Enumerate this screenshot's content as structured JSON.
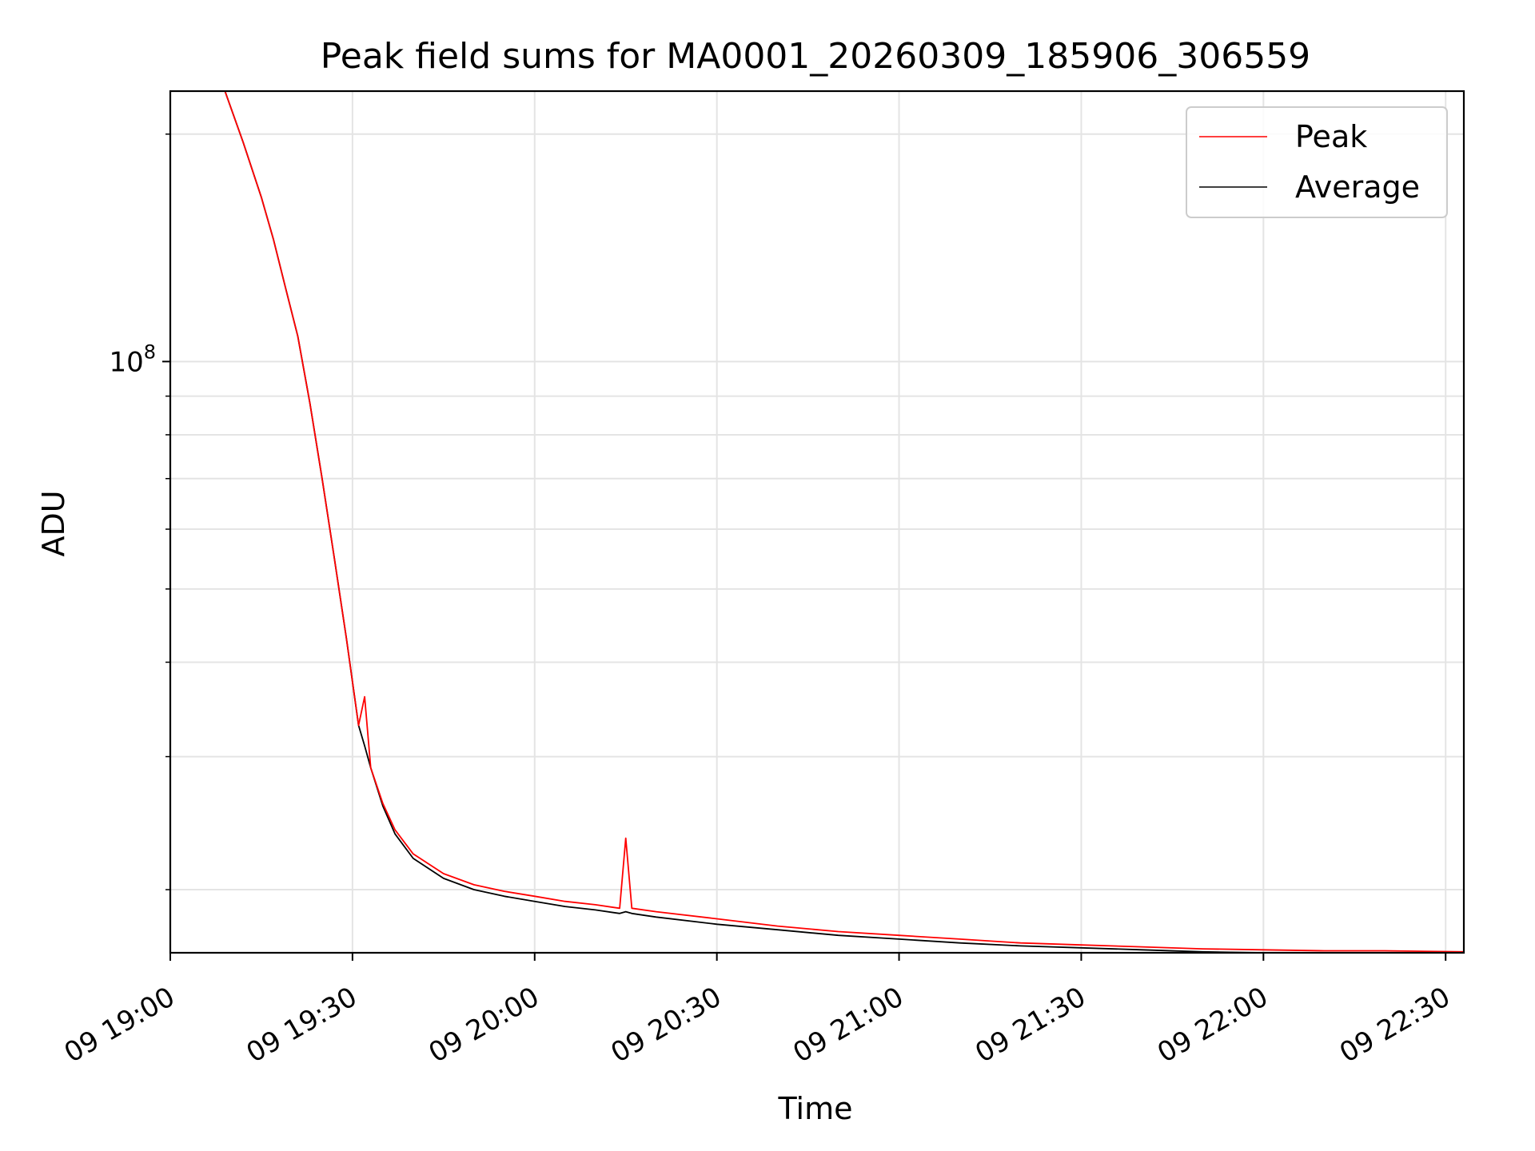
{
  "chart_data": {
    "type": "line",
    "title": "Peak field sums for MA0001_20260309_185906_306559",
    "xlabel": "Time",
    "ylabel": "ADU",
    "x_scale": "time",
    "y_scale": "log",
    "xlim": [
      "2026-03-09 19:00",
      "2026-03-09 22:33"
    ],
    "ylim": [
      16500000,
      228000000
    ],
    "x_ticks": [
      "09 19:00",
      "09 19:30",
      "09 20:00",
      "09 20:30",
      "09 21:00",
      "09 21:30",
      "09 22:00",
      "09 22:30"
    ],
    "y_ticks": [
      {
        "label_base": "10",
        "label_exp": "8",
        "value": 100000000
      }
    ],
    "y_minor_ticks": [
      20000000,
      30000000,
      40000000,
      50000000,
      60000000,
      70000000,
      80000000,
      90000000,
      200000000
    ],
    "grid": true,
    "legend_position": "top-right",
    "series": [
      {
        "name": "Peak",
        "color": "#ff0000",
        "points": [
          [
            "2026-03-09 19:09",
            228000000
          ],
          [
            "2026-03-09 19:12",
            195000000
          ],
          [
            "2026-03-09 19:15",
            165000000
          ],
          [
            "2026-03-09 19:17",
            145000000
          ],
          [
            "2026-03-09 19:19",
            125000000
          ],
          [
            "2026-03-09 19:21",
            108000000
          ],
          [
            "2026-03-09 19:23",
            88000000
          ],
          [
            "2026-03-09 19:25",
            70000000
          ],
          [
            "2026-03-09 19:27",
            55000000
          ],
          [
            "2026-03-09 19:29",
            43000000
          ],
          [
            "2026-03-09 19:31",
            33000000
          ],
          [
            "2026-03-09 19:32",
            36000000
          ],
          [
            "2026-03-09 19:33",
            29000000
          ],
          [
            "2026-03-09 19:35",
            26000000
          ],
          [
            "2026-03-09 19:37",
            24000000
          ],
          [
            "2026-03-09 19:40",
            22300000
          ],
          [
            "2026-03-09 19:45",
            21000000
          ],
          [
            "2026-03-09 19:50",
            20300000
          ],
          [
            "2026-03-09 19:55",
            19900000
          ],
          [
            "2026-03-09 20:00",
            19600000
          ],
          [
            "2026-03-09 20:05",
            19300000
          ],
          [
            "2026-03-09 20:10",
            19100000
          ],
          [
            "2026-03-09 20:14",
            18900000
          ],
          [
            "2026-03-09 20:15",
            23400000
          ],
          [
            "2026-03-09 20:16",
            18900000
          ],
          [
            "2026-03-09 20:20",
            18700000
          ],
          [
            "2026-03-09 20:30",
            18300000
          ],
          [
            "2026-03-09 20:40",
            17900000
          ],
          [
            "2026-03-09 20:50",
            17600000
          ],
          [
            "2026-03-09 21:00",
            17400000
          ],
          [
            "2026-03-09 21:10",
            17200000
          ],
          [
            "2026-03-09 21:20",
            17000000
          ],
          [
            "2026-03-09 21:30",
            16900000
          ],
          [
            "2026-03-09 21:40",
            16800000
          ],
          [
            "2026-03-09 21:50",
            16700000
          ],
          [
            "2026-03-09 22:00",
            16650000
          ],
          [
            "2026-03-09 22:10",
            16600000
          ],
          [
            "2026-03-09 22:20",
            16600000
          ],
          [
            "2026-03-09 22:33",
            16550000
          ]
        ]
      },
      {
        "name": "Average",
        "color": "#000000",
        "points": [
          [
            "2026-03-09 19:09",
            228000000
          ],
          [
            "2026-03-09 19:12",
            195000000
          ],
          [
            "2026-03-09 19:15",
            165000000
          ],
          [
            "2026-03-09 19:17",
            145000000
          ],
          [
            "2026-03-09 19:19",
            125000000
          ],
          [
            "2026-03-09 19:21",
            108000000
          ],
          [
            "2026-03-09 19:23",
            88000000
          ],
          [
            "2026-03-09 19:25",
            70000000
          ],
          [
            "2026-03-09 19:27",
            55000000
          ],
          [
            "2026-03-09 19:29",
            43000000
          ],
          [
            "2026-03-09 19:31",
            33000000
          ],
          [
            "2026-03-09 19:32",
            31000000
          ],
          [
            "2026-03-09 19:33",
            29000000
          ],
          [
            "2026-03-09 19:35",
            25800000
          ],
          [
            "2026-03-09 19:37",
            23700000
          ],
          [
            "2026-03-09 19:40",
            22000000
          ],
          [
            "2026-03-09 19:45",
            20700000
          ],
          [
            "2026-03-09 19:50",
            20000000
          ],
          [
            "2026-03-09 19:55",
            19600000
          ],
          [
            "2026-03-09 20:00",
            19300000
          ],
          [
            "2026-03-09 20:05",
            19000000
          ],
          [
            "2026-03-09 20:10",
            18800000
          ],
          [
            "2026-03-09 20:14",
            18600000
          ],
          [
            "2026-03-09 20:15",
            18700000
          ],
          [
            "2026-03-09 20:16",
            18600000
          ],
          [
            "2026-03-09 20:20",
            18400000
          ],
          [
            "2026-03-09 20:30",
            18000000
          ],
          [
            "2026-03-09 20:40",
            17700000
          ],
          [
            "2026-03-09 20:50",
            17400000
          ],
          [
            "2026-03-09 21:00",
            17200000
          ],
          [
            "2026-03-09 21:10",
            17000000
          ],
          [
            "2026-03-09 21:20",
            16850000
          ],
          [
            "2026-03-09 21:30",
            16750000
          ],
          [
            "2026-03-09 21:40",
            16650000
          ],
          [
            "2026-03-09 21:50",
            16550000
          ],
          [
            "2026-03-09 22:00",
            16500000
          ],
          [
            "2026-03-09 22:10",
            16480000
          ],
          [
            "2026-03-09 22:20",
            16480000
          ],
          [
            "2026-03-09 22:33",
            16450000
          ]
        ]
      }
    ]
  }
}
